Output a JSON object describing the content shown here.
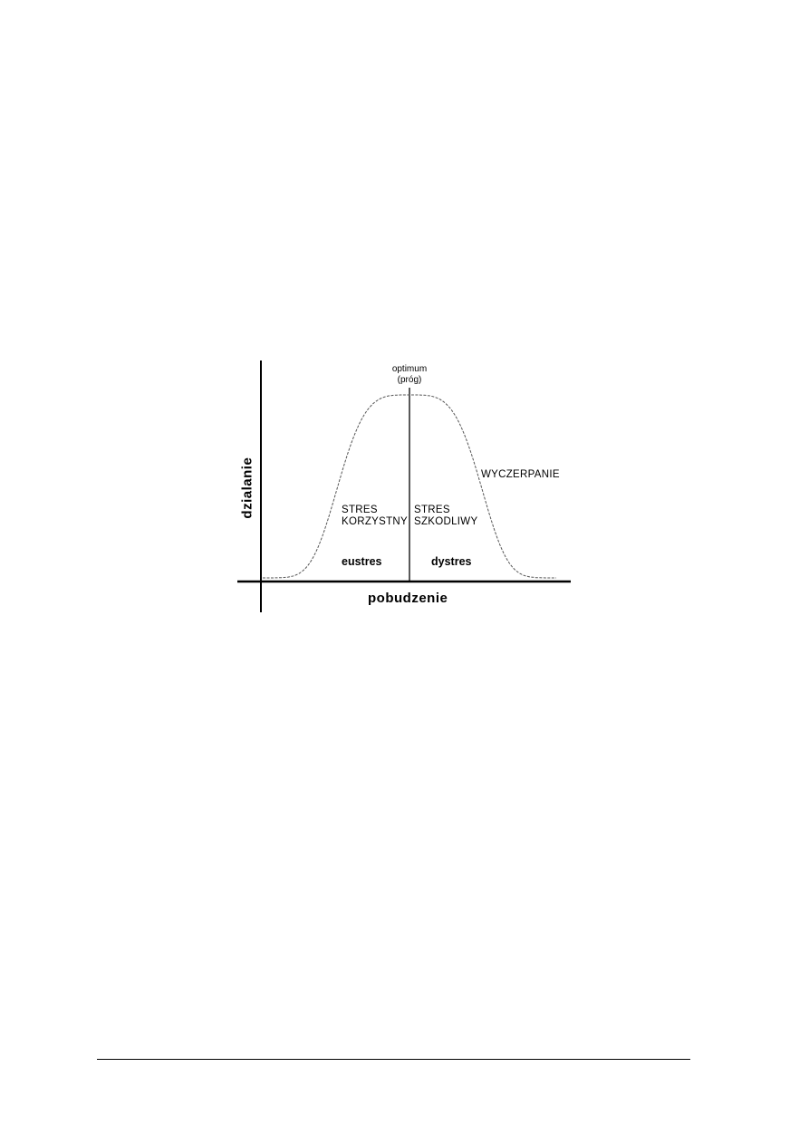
{
  "diagram": {
    "y_axis_label": "dzialanie",
    "x_axis_label": "pobudzenie",
    "optimum_label_line1": "optimum",
    "optimum_label_line2": "(próg)",
    "left_region_line1": "STRES",
    "left_region_line2": "KORZYSTNY",
    "right_region_line1": "STRES",
    "right_region_line2": "SZKODLIWY",
    "exhaustion_label": "WYCZERPANIE",
    "left_term": "eustres",
    "right_term": "dystres",
    "curve_color": "#555555",
    "line_color": "#000000"
  }
}
